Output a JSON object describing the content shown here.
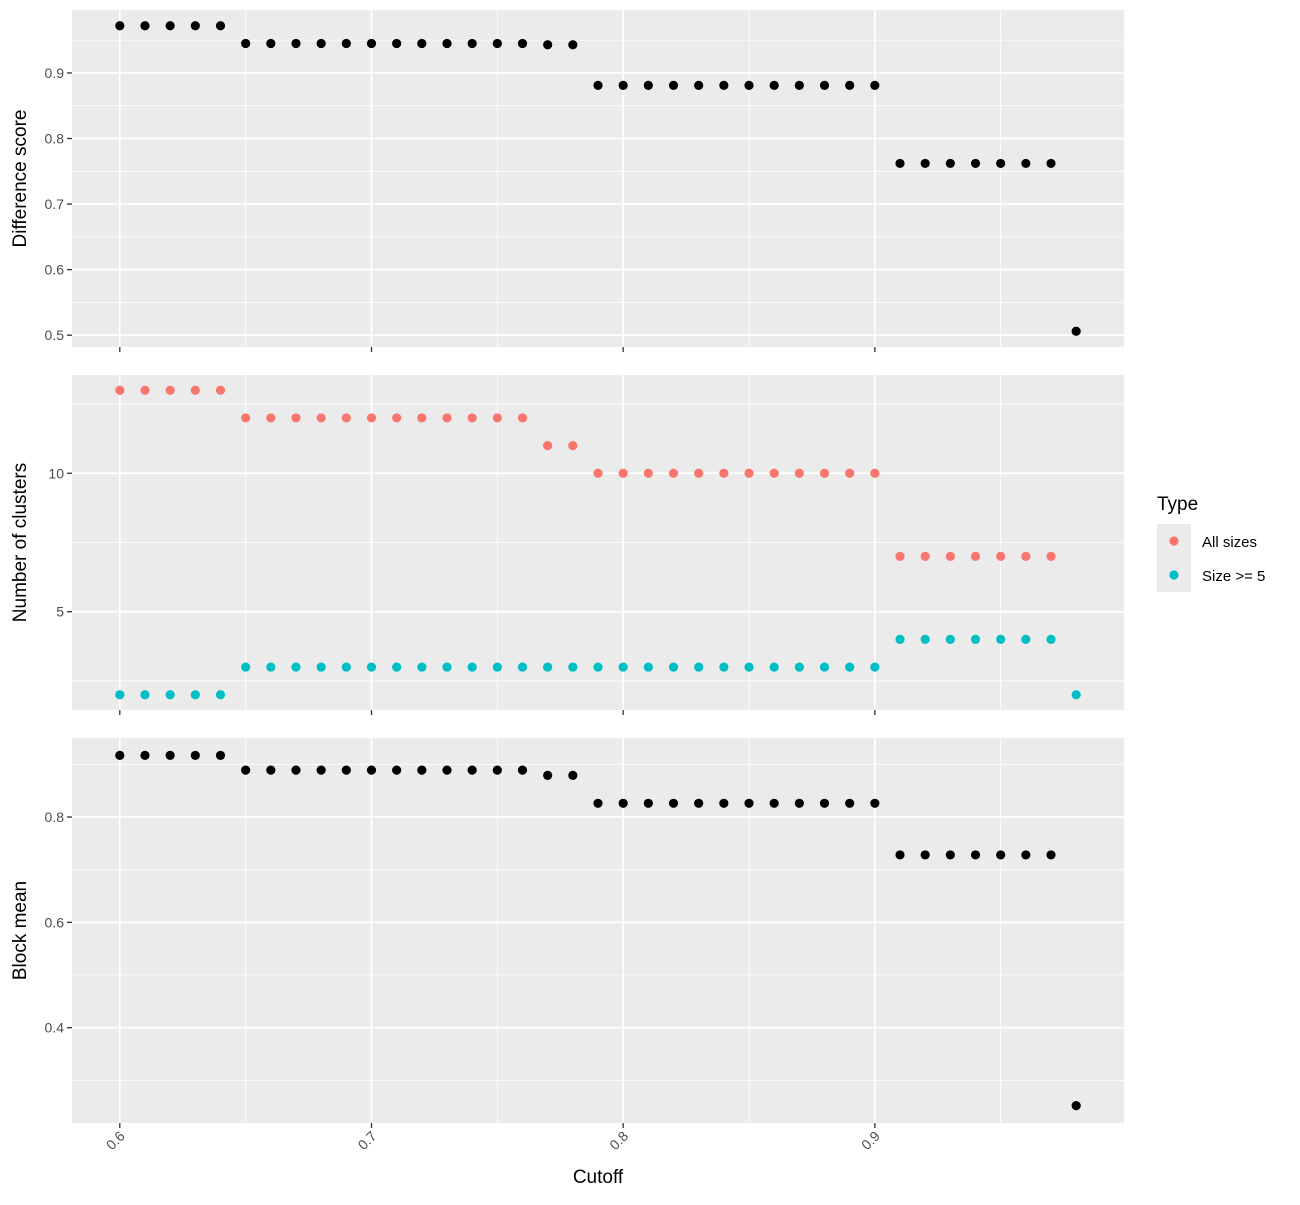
{
  "chart_data": {
    "type": "scatter",
    "xlabel": "Cutoff",
    "x_ticks": [
      "0.6",
      "0.7",
      "0.8",
      "0.9"
    ],
    "x_tick_values": [
      0.6,
      0.7,
      0.8,
      0.9
    ],
    "xlim": [
      0.581,
      0.999
    ],
    "grid": true,
    "legend_position": "right",
    "legend": {
      "title": "Type",
      "entries": [
        {
          "label": "All sizes",
          "color": "#F8766D"
        },
        {
          "label": "Size >= 5",
          "color": "#00BFC4"
        }
      ]
    },
    "x": [
      0.6,
      0.61,
      0.62,
      0.63,
      0.64,
      0.65,
      0.66,
      0.67,
      0.68,
      0.69,
      0.7,
      0.71,
      0.72,
      0.73,
      0.74,
      0.75,
      0.76,
      0.77,
      0.78,
      0.79,
      0.8,
      0.81,
      0.82,
      0.83,
      0.84,
      0.85,
      0.86,
      0.87,
      0.88,
      0.89,
      0.9,
      0.91,
      0.92,
      0.93,
      0.94,
      0.95,
      0.96,
      0.97,
      0.98
    ],
    "panels": [
      {
        "ylabel": "Difference score",
        "ylim": [
          0.482,
          0.996
        ],
        "y_ticks": [
          "0.5",
          "0.6",
          "0.7",
          "0.8",
          "0.9"
        ],
        "y_tick_values": [
          0.5,
          0.6,
          0.7,
          0.8,
          0.9
        ],
        "series": [
          {
            "color": "#000000",
            "x": [
              0.6,
              0.61,
              0.62,
              0.63,
              0.64,
              0.65,
              0.66,
              0.67,
              0.68,
              0.69,
              0.7,
              0.71,
              0.72,
              0.73,
              0.74,
              0.75,
              0.76,
              0.77,
              0.78,
              0.79,
              0.8,
              0.81,
              0.82,
              0.83,
              0.84,
              0.85,
              0.86,
              0.87,
              0.88,
              0.89,
              0.9,
              0.91,
              0.92,
              0.93,
              0.94,
              0.95,
              0.96,
              0.97,
              0.98
            ],
            "values": [
              0.972,
              0.972,
              0.972,
              0.972,
              0.972,
              0.945,
              0.945,
              0.945,
              0.945,
              0.945,
              0.945,
              0.945,
              0.945,
              0.945,
              0.945,
              0.945,
              0.945,
              0.943,
              0.943,
              0.881,
              0.881,
              0.881,
              0.881,
              0.881,
              0.881,
              0.881,
              0.881,
              0.881,
              0.881,
              0.881,
              0.881,
              0.762,
              0.762,
              0.762,
              0.762,
              0.762,
              0.762,
              0.762,
              0.506
            ]
          }
        ]
      },
      {
        "ylabel": "Number of clusters",
        "ylim": [
          1.45,
          13.55
        ],
        "y_ticks": [
          "5",
          "10"
        ],
        "y_tick_values": [
          5,
          10
        ],
        "series": [
          {
            "name": "All sizes",
            "color": "#F8766D",
            "x": [
              0.6,
              0.61,
              0.62,
              0.63,
              0.64,
              0.65,
              0.66,
              0.67,
              0.68,
              0.69,
              0.7,
              0.71,
              0.72,
              0.73,
              0.74,
              0.75,
              0.76,
              0.77,
              0.78,
              0.79,
              0.8,
              0.81,
              0.82,
              0.83,
              0.84,
              0.85,
              0.86,
              0.87,
              0.88,
              0.89,
              0.9,
              0.91,
              0.92,
              0.93,
              0.94,
              0.95,
              0.96,
              0.97
            ],
            "values": [
              13,
              13,
              13,
              13,
              13,
              12,
              12,
              12,
              12,
              12,
              12,
              12,
              12,
              12,
              12,
              12,
              12,
              11,
              11,
              10,
              10,
              10,
              10,
              10,
              10,
              10,
              10,
              10,
              10,
              10,
              10,
              7,
              7,
              7,
              7,
              7,
              7,
              7
            ]
          },
          {
            "name": "Size >= 5",
            "color": "#00BFC4",
            "x": [
              0.6,
              0.61,
              0.62,
              0.63,
              0.64,
              0.65,
              0.66,
              0.67,
              0.68,
              0.69,
              0.7,
              0.71,
              0.72,
              0.73,
              0.74,
              0.75,
              0.76,
              0.77,
              0.78,
              0.79,
              0.8,
              0.81,
              0.82,
              0.83,
              0.84,
              0.85,
              0.86,
              0.87,
              0.88,
              0.89,
              0.9,
              0.91,
              0.92,
              0.93,
              0.94,
              0.95,
              0.96,
              0.97,
              0.98
            ],
            "values": [
              2,
              2,
              2,
              2,
              2,
              3,
              3,
              3,
              3,
              3,
              3,
              3,
              3,
              3,
              3,
              3,
              3,
              3,
              3,
              3,
              3,
              3,
              3,
              3,
              3,
              3,
              3,
              3,
              3,
              3,
              3,
              4,
              4,
              4,
              4,
              4,
              4,
              4,
              2
            ]
          }
        ]
      },
      {
        "ylabel": "Block mean",
        "ylim": [
          0.219,
          0.95
        ],
        "y_ticks": [
          "0.4",
          "0.6",
          "0.8"
        ],
        "y_tick_values": [
          0.4,
          0.6,
          0.8
        ],
        "series": [
          {
            "color": "#000000",
            "x": [
              0.6,
              0.61,
              0.62,
              0.63,
              0.64,
              0.65,
              0.66,
              0.67,
              0.68,
              0.69,
              0.7,
              0.71,
              0.72,
              0.73,
              0.74,
              0.75,
              0.76,
              0.77,
              0.78,
              0.79,
              0.8,
              0.81,
              0.82,
              0.83,
              0.84,
              0.85,
              0.86,
              0.87,
              0.88,
              0.89,
              0.9,
              0.91,
              0.92,
              0.93,
              0.94,
              0.95,
              0.96,
              0.97,
              0.98
            ],
            "values": [
              0.917,
              0.917,
              0.917,
              0.917,
              0.917,
              0.889,
              0.889,
              0.889,
              0.889,
              0.889,
              0.889,
              0.889,
              0.889,
              0.889,
              0.889,
              0.889,
              0.889,
              0.879,
              0.879,
              0.826,
              0.826,
              0.826,
              0.826,
              0.826,
              0.826,
              0.826,
              0.826,
              0.826,
              0.826,
              0.826,
              0.826,
              0.728,
              0.728,
              0.728,
              0.728,
              0.728,
              0.728,
              0.728,
              0.252
            ]
          }
        ]
      }
    ]
  }
}
